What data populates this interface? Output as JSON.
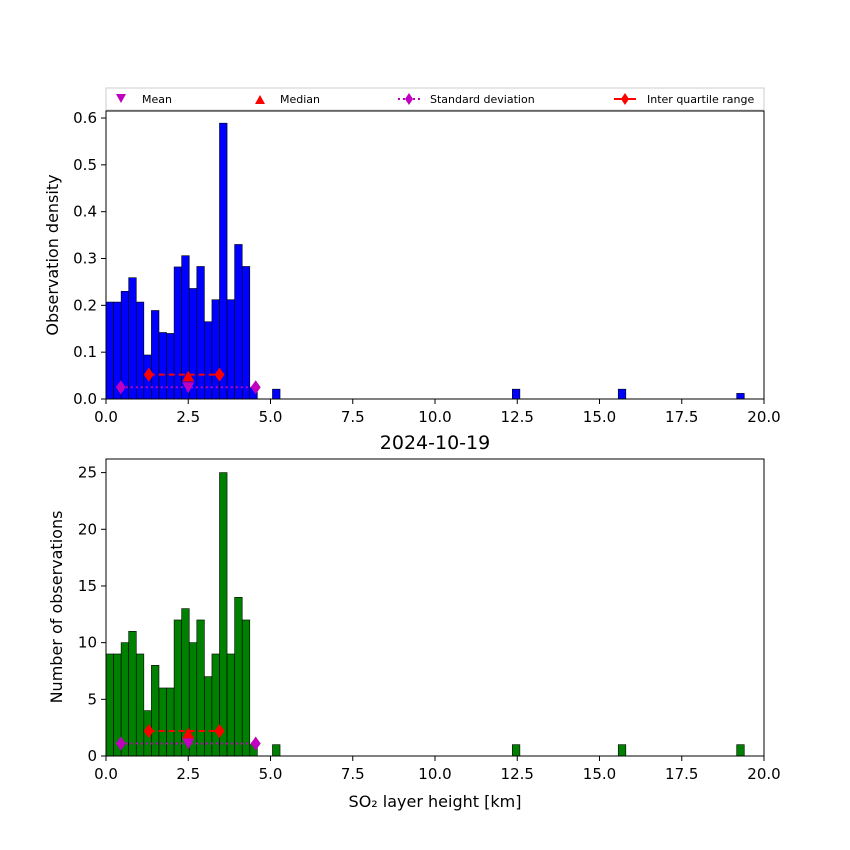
{
  "chart_data": [
    {
      "type": "bar",
      "title": "",
      "xlabel": "",
      "ylabel": "Observation density",
      "xlim": [
        0,
        20
      ],
      "ylim": [
        0,
        0.615
      ],
      "xticks": [
        0,
        2.5,
        5,
        7.5,
        10,
        12.5,
        15,
        17.5,
        20
      ],
      "xtick_labels": [
        "0.0",
        "2.5",
        "5.0",
        "7.5",
        "10.0",
        "12.5",
        "15.0",
        "17.5",
        "20.0"
      ],
      "yticks": [
        0,
        0.1,
        0.2,
        0.3,
        0.4,
        0.5,
        0.6
      ],
      "ytick_labels": [
        "0.0",
        "0.1",
        "0.2",
        "0.3",
        "0.4",
        "0.5",
        "0.6"
      ],
      "bar_color": "#0000ff",
      "bin_width": 0.23,
      "bins": [
        {
          "x": 0.0,
          "value": 0.207
        },
        {
          "x": 0.23,
          "value": 0.207
        },
        {
          "x": 0.46,
          "value": 0.23
        },
        {
          "x": 0.69,
          "value": 0.259
        },
        {
          "x": 0.92,
          "value": 0.207
        },
        {
          "x": 1.15,
          "value": 0.094
        },
        {
          "x": 1.38,
          "value": 0.092
        },
        {
          "x": 1.38,
          "value": 0.092
        },
        {
          "x": 1.38,
          "value": 0.189
        },
        {
          "x": 1.61,
          "value": 0.142
        },
        {
          "x": 1.84,
          "value": 0.14
        },
        {
          "x": 2.07,
          "value": 0.282
        },
        {
          "x": 2.3,
          "value": 0.306
        },
        {
          "x": 2.53,
          "value": 0.236
        },
        {
          "x": 2.76,
          "value": 0.283
        },
        {
          "x": 2.99,
          "value": 0.165
        },
        {
          "x": 3.22,
          "value": 0.212
        },
        {
          "x": 3.45,
          "value": 0.212
        },
        {
          "x": 3.45,
          "value": 0.589
        },
        {
          "x": 3.68,
          "value": 0.212
        },
        {
          "x": 3.91,
          "value": 0.33
        },
        {
          "x": 4.14,
          "value": 0.283
        },
        {
          "x": 4.37,
          "value": 0.024
        },
        {
          "x": 5.06,
          "value": 0.021
        },
        {
          "x": 12.35,
          "value": 0.021
        },
        {
          "x": 15.57,
          "value": 0.021
        },
        {
          "x": 19.17,
          "value": 0.012
        }
      ],
      "stats": {
        "mean": {
          "x": 2.5,
          "y": 0.025
        },
        "median": {
          "x": 2.5,
          "y": 0.048
        },
        "std_range": {
          "x0": 0.45,
          "x1": 4.55,
          "y": 0.025
        },
        "iqr_range": {
          "x0": 1.3,
          "x1": 3.45,
          "y": 0.052
        }
      },
      "legend": {
        "placement": "above plot, single row",
        "entries": [
          "Mean",
          "Median",
          "Standard deviation",
          "Inter quartile range"
        ]
      }
    },
    {
      "type": "bar",
      "title": "2024-10-19",
      "xlabel": "SO₂ layer height [km]",
      "ylabel": "Number of observations",
      "xlim": [
        0,
        20
      ],
      "ylim": [
        0,
        26.2
      ],
      "xticks": [
        0,
        2.5,
        5,
        7.5,
        10,
        12.5,
        15,
        17.5,
        20
      ],
      "xtick_labels": [
        "0.0",
        "2.5",
        "5.0",
        "7.5",
        "10.0",
        "12.5",
        "15.0",
        "17.5",
        "20.0"
      ],
      "yticks": [
        0,
        5,
        10,
        15,
        20,
        25
      ],
      "ytick_labels": [
        "0",
        "5",
        "10",
        "15",
        "20",
        "25"
      ],
      "bar_color": "#008000",
      "bin_width": 0.23,
      "bins": [
        {
          "x": 0.0,
          "value": 9
        },
        {
          "x": 0.23,
          "value": 9
        },
        {
          "x": 0.46,
          "value": 10
        },
        {
          "x": 0.69,
          "value": 11
        },
        {
          "x": 0.92,
          "value": 9
        },
        {
          "x": 1.15,
          "value": 4
        },
        {
          "x": 1.38,
          "value": 4
        },
        {
          "x": 1.38,
          "value": 4
        },
        {
          "x": 1.38,
          "value": 8
        },
        {
          "x": 1.61,
          "value": 6
        },
        {
          "x": 1.84,
          "value": 6
        },
        {
          "x": 2.07,
          "value": 12
        },
        {
          "x": 2.3,
          "value": 13
        },
        {
          "x": 2.53,
          "value": 10
        },
        {
          "x": 2.76,
          "value": 12
        },
        {
          "x": 2.99,
          "value": 7
        },
        {
          "x": 3.22,
          "value": 9
        },
        {
          "x": 3.45,
          "value": 9
        },
        {
          "x": 3.45,
          "value": 25
        },
        {
          "x": 3.68,
          "value": 9
        },
        {
          "x": 3.91,
          "value": 14
        },
        {
          "x": 4.14,
          "value": 12
        },
        {
          "x": 4.37,
          "value": 1
        },
        {
          "x": 5.06,
          "value": 1
        },
        {
          "x": 12.35,
          "value": 1
        },
        {
          "x": 15.57,
          "value": 1
        },
        {
          "x": 19.17,
          "value": 1
        }
      ],
      "stats": {
        "mean": {
          "x": 2.5,
          "y": 1.1
        },
        "median": {
          "x": 2.5,
          "y": 2.0
        },
        "std_range": {
          "x0": 0.45,
          "x1": 4.55,
          "y": 1.1
        },
        "iqr_range": {
          "x0": 1.3,
          "x1": 3.45,
          "y": 2.2
        }
      }
    }
  ],
  "colors": {
    "mean": "#bf00bf",
    "median": "#ff0000",
    "std": "#bf00bf",
    "iqr": "#ff0000"
  }
}
